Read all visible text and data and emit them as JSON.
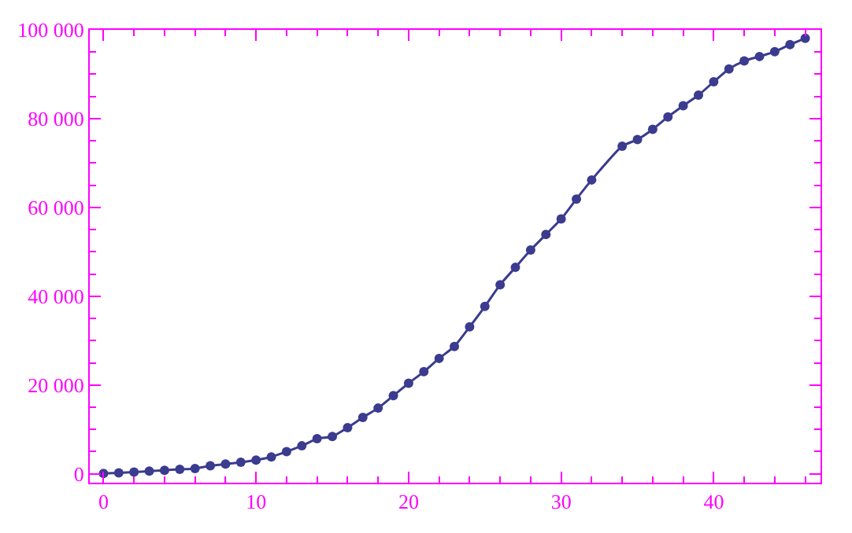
{
  "chart_data": {
    "type": "line",
    "marker": "circle",
    "line_style": "solid",
    "x": [
      0,
      1,
      2,
      3,
      4,
      5,
      6,
      7,
      8,
      9,
      10,
      11,
      12,
      13,
      14,
      15,
      16,
      17,
      18,
      19,
      20,
      21,
      22,
      23,
      24,
      25,
      26,
      27,
      28,
      29,
      30,
      31,
      32,
      34,
      35,
      36,
      37,
      38,
      39,
      40,
      41,
      42,
      43,
      44,
      45,
      46
    ],
    "series": [
      {
        "color": "#3b3b8f",
        "values": [
          100,
          200,
          400,
          600,
          800,
          1000,
          1200,
          1800,
          2200,
          2600,
          3100,
          3800,
          5000,
          6300,
          7900,
          8400,
          10400,
          12700,
          14800,
          17600,
          20400,
          23000,
          26000,
          28700,
          33100,
          37700,
          42600,
          46500,
          50400,
          53900,
          57400,
          61900,
          66200,
          73800,
          75300,
          77600,
          80400,
          82900,
          85300,
          88300,
          91200,
          93000,
          94000,
          95100,
          96700,
          98100
        ]
      }
    ],
    "xlim": [
      -0.9,
      47
    ],
    "xticks": [
      0,
      {
        "value": 2,
        "label": null
      },
      {
        "value": 4,
        "label": null
      },
      {
        "value": 6,
        "label": null
      },
      {
        "value": 8,
        "label": null
      },
      10,
      {
        "value": 12,
        "label": null
      },
      {
        "value": 14,
        "label": null
      },
      {
        "value": 16,
        "label": null
      },
      {
        "value": 18,
        "label": null
      },
      20,
      {
        "value": 22,
        "label": null
      },
      {
        "value": 24,
        "label": null
      },
      {
        "value": 26,
        "label": null
      },
      {
        "value": 28,
        "label": null
      },
      30,
      {
        "value": 32,
        "label": null
      },
      {
        "value": 34,
        "label": null
      },
      {
        "value": 36,
        "label": null
      },
      {
        "value": 38,
        "label": null
      },
      40,
      {
        "value": 42,
        "label": null
      },
      {
        "value": 44,
        "label": null
      },
      {
        "value": 46,
        "label": null
      }
    ],
    "ylim": [
      -2000,
      100000
    ],
    "yticks": [
      {
        "value": 0,
        "label": "0"
      },
      {
        "value": 5000,
        "label": null
      },
      {
        "value": 10000,
        "label": null
      },
      {
        "value": 15000,
        "label": null
      },
      {
        "value": 20000,
        "label": "20 000"
      },
      {
        "value": 25000,
        "label": null
      },
      {
        "value": 30000,
        "label": null
      },
      {
        "value": 35000,
        "label": null
      },
      {
        "value": 40000,
        "label": "40 000"
      },
      {
        "value": 45000,
        "label": null
      },
      {
        "value": 50000,
        "label": null
      },
      {
        "value": 55000,
        "label": null
      },
      {
        "value": 60000,
        "label": "60 000"
      },
      {
        "value": 65000,
        "label": null
      },
      {
        "value": 70000,
        "label": null
      },
      {
        "value": 75000,
        "label": null
      },
      {
        "value": 80000,
        "label": "80 000"
      },
      {
        "value": 85000,
        "label": null
      },
      {
        "value": 90000,
        "label": null
      },
      {
        "value": 95000,
        "label": null
      },
      {
        "value": 100000,
        "label": "100 000"
      }
    ]
  }
}
